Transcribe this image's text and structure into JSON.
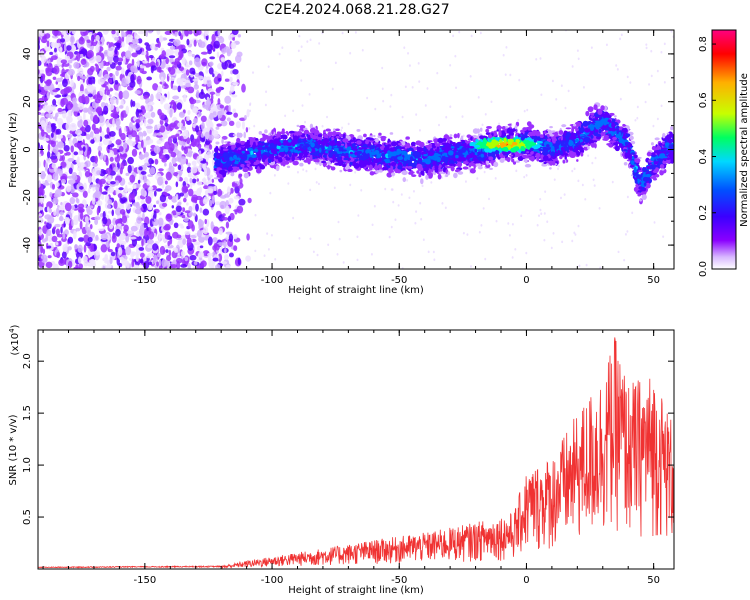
{
  "title": "C2E4.2024.068.21.28.G27",
  "chart_data": [
    {
      "type": "heatmap",
      "xlabel": "Height of straight line (km)",
      "ylabel": "Frequency (Hz)",
      "xlim": [
        -192,
        58
      ],
      "ylim": [
        -50,
        50
      ],
      "x_ticks": [
        -150,
        -100,
        -50,
        0,
        50
      ],
      "y_ticks": [
        -40,
        -20,
        0,
        20,
        40
      ],
      "colorbar": {
        "label": "Normalized spectral amplitude",
        "range": [
          0.0,
          0.85
        ],
        "ticks": [
          "0.0",
          "0.2",
          "0.4",
          "0.6",
          "0.8"
        ],
        "colors": [
          "#ffffff",
          "#8a00ff",
          "#3a00ff",
          "#0050ff",
          "#00d8ff",
          "#00ff60",
          "#c8ff00",
          "#ffb000",
          "#ff0000",
          "#ff0080"
        ]
      },
      "ridge": {
        "description_points": [
          [
            -122,
            -5
          ],
          [
            -100,
            0
          ],
          [
            -85,
            2
          ],
          [
            -70,
            -1
          ],
          [
            -60,
            -2
          ],
          [
            -50,
            -3
          ],
          [
            -40,
            -4
          ],
          [
            -30,
            -2
          ],
          [
            -20,
            -1
          ],
          [
            -10,
            2
          ],
          [
            0,
            3
          ],
          [
            10,
            0
          ],
          [
            20,
            4
          ],
          [
            30,
            12
          ],
          [
            40,
            2
          ],
          [
            45,
            -15
          ],
          [
            50,
            -5
          ],
          [
            58,
            2
          ]
        ],
        "peak": {
          "x": -8,
          "y": 2,
          "value": 0.85
        },
        "noise_region_x": [
          -192,
          -108
        ]
      }
    },
    {
      "type": "line",
      "xlabel": "Height of straight line (km)",
      "ylabel": "SNR (10 * v/v)",
      "y_multiplier": "(x10",
      "y_multiplier_exp": "4",
      "y_multiplier_close": ")",
      "xlim": [
        -192,
        58
      ],
      "ylim": [
        0,
        2.3
      ],
      "x_ticks": [
        -150,
        -100,
        -50,
        0,
        50
      ],
      "y_ticks": [
        "0.5",
        "1.0",
        "1.5",
        "2.0"
      ],
      "color": "#f03232",
      "envelope": [
        [
          -192,
          0.02
        ],
        [
          -120,
          0.03
        ],
        [
          -110,
          0.08
        ],
        [
          -100,
          0.12
        ],
        [
          -80,
          0.2
        ],
        [
          -60,
          0.28
        ],
        [
          -40,
          0.35
        ],
        [
          -20,
          0.45
        ],
        [
          -5,
          0.55
        ],
        [
          0,
          0.95
        ],
        [
          10,
          1.1
        ],
        [
          20,
          1.5
        ],
        [
          30,
          1.9
        ],
        [
          35,
          2.25
        ],
        [
          40,
          1.8
        ],
        [
          50,
          1.9
        ],
        [
          58,
          1.4
        ]
      ]
    }
  ]
}
